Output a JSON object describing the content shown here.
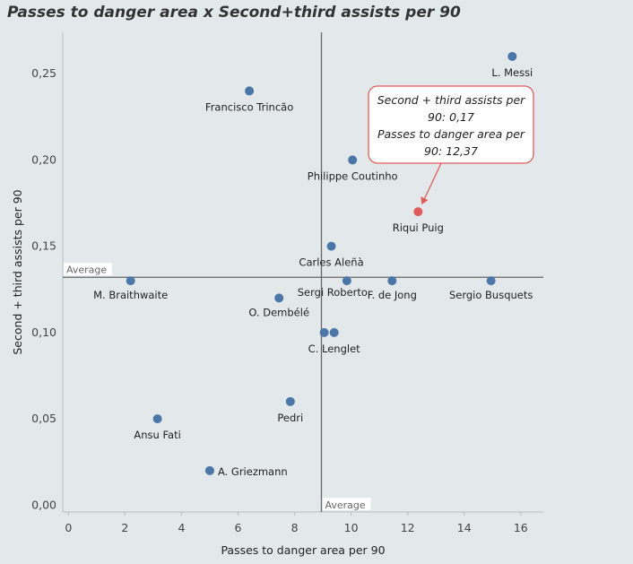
{
  "chart_data": {
    "type": "scatter",
    "title": "Passes to danger area x Second+third assists per 90",
    "xlabel": "Passes to danger area per 90",
    "ylabel": "Second + third assists per 90",
    "xlim": [
      -0.2,
      16.8
    ],
    "ylim": [
      -0.004,
      0.274
    ],
    "x_ticks": [
      0,
      2,
      4,
      6,
      8,
      10,
      12,
      14,
      16
    ],
    "x_tick_labels": [
      "0",
      "2",
      "4",
      "6",
      "8",
      "10",
      "12",
      "14",
      "16"
    ],
    "y_ticks": [
      0,
      0.05,
      0.1,
      0.15,
      0.2,
      0.25
    ],
    "y_tick_labels": [
      "0,00",
      "0,05",
      "0,10",
      "0,15",
      "0,20",
      "0,25"
    ],
    "grid": false,
    "colors": {
      "default": "#4a76a8",
      "highlight": "#e05a5a"
    },
    "average": {
      "x": 8.95,
      "y": 0.132,
      "x_label": "Average",
      "y_label": "Average"
    },
    "points": [
      {
        "x": 15.7,
        "y": 0.26,
        "label": "L. Messi",
        "label_pos": "below"
      },
      {
        "x": 6.4,
        "y": 0.24,
        "label": "Francisco Trincão",
        "label_pos": "below"
      },
      {
        "x": 10.05,
        "y": 0.2,
        "label": "Philippe Coutinho",
        "label_pos": "below"
      },
      {
        "x": 12.37,
        "y": 0.17,
        "label": "Riqui Puig",
        "label_pos": "below",
        "highlight": true
      },
      {
        "x": 9.3,
        "y": 0.15,
        "label": "Carles Aleñà",
        "label_pos": "below"
      },
      {
        "x": 2.2,
        "y": 0.13,
        "label": "M. Braithwaite",
        "label_pos": "below"
      },
      {
        "x": 9.85,
        "y": 0.13,
        "label": "Sergi Roberto",
        "label_pos": "below-left"
      },
      {
        "x": 11.45,
        "y": 0.13,
        "label": "F. de Jong",
        "label_pos": "below"
      },
      {
        "x": 14.95,
        "y": 0.13,
        "label": "Sergio Busquets",
        "label_pos": "below"
      },
      {
        "x": 7.45,
        "y": 0.12,
        "label": "O. Dembélé",
        "label_pos": "below"
      },
      {
        "x": 9.05,
        "y": 0.1,
        "label": "",
        "label_pos": "below"
      },
      {
        "x": 9.4,
        "y": 0.1,
        "label": "C. Lenglet",
        "label_pos": "below"
      },
      {
        "x": 7.85,
        "y": 0.06,
        "label": "Pedri",
        "label_pos": "below"
      },
      {
        "x": 3.15,
        "y": 0.05,
        "label": "Ansu Fati",
        "label_pos": "below"
      },
      {
        "x": 5.0,
        "y": 0.02,
        "label": "A. Griezmann",
        "label_pos": "right"
      }
    ],
    "annotation": {
      "target_index": 3,
      "lines": [
        "Second + third assists per",
        "90: 0,17",
        "Passes to danger area per",
        "90: 12,37"
      ]
    }
  }
}
